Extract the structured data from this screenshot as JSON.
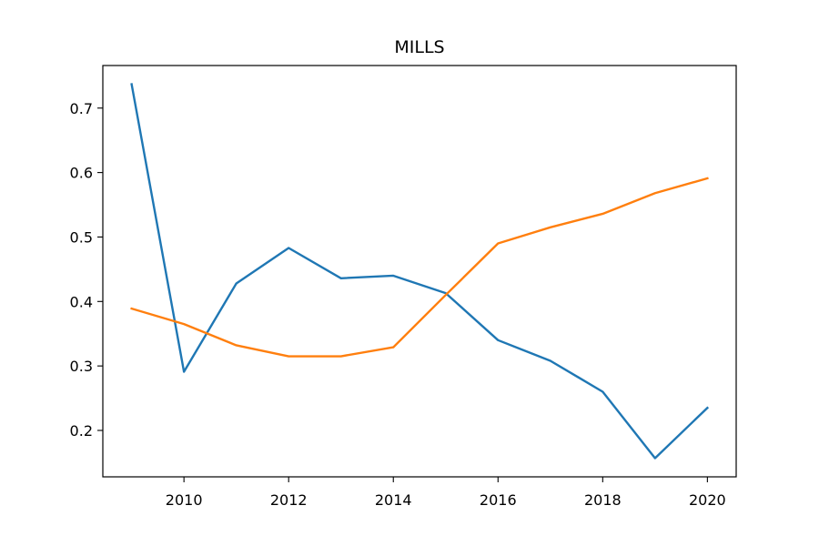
{
  "chart_data": {
    "type": "line",
    "title": "MILLS",
    "xlabel": "",
    "ylabel": "",
    "x": [
      2009,
      2010,
      2011,
      2012,
      2013,
      2014,
      2015,
      2016,
      2017,
      2018,
      2019,
      2020
    ],
    "xlim": [
      2008.45,
      2020.55
    ],
    "ylim": [
      0.128,
      0.766
    ],
    "xticks": [
      2010,
      2012,
      2014,
      2016,
      2018,
      2020
    ],
    "yticks": [
      0.2,
      0.3,
      0.4,
      0.5,
      0.6,
      0.7
    ],
    "ytick_labels": [
      "0.2",
      "0.3",
      "0.4",
      "0.5",
      "0.6",
      "0.7"
    ],
    "grid": false,
    "series": [
      {
        "color": "#1f77b4",
        "values": [
          0.737,
          0.291,
          0.428,
          0.483,
          0.436,
          0.44,
          0.413,
          0.34,
          0.308,
          0.26,
          0.157,
          0.235
        ]
      },
      {
        "color": "#ff7f0e",
        "values": [
          0.389,
          0.365,
          0.332,
          0.315,
          0.315,
          0.329,
          0.41,
          0.49,
          0.515,
          0.536,
          0.568,
          0.591
        ]
      }
    ]
  }
}
